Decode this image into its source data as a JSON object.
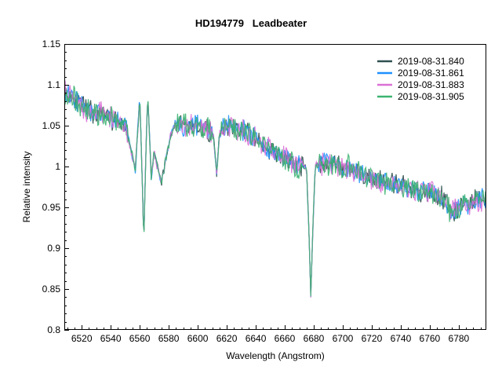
{
  "chart_data": {
    "type": "line",
    "title": "HD194779   Leadbeater",
    "xlabel": "Wavelength (Angstrom)",
    "ylabel": "Relative intensity",
    "xlim": [
      6508,
      6799
    ],
    "ylim": [
      0.8,
      1.15
    ],
    "x_ticks": [
      6520,
      6540,
      6560,
      6580,
      6600,
      6620,
      6640,
      6660,
      6680,
      6700,
      6720,
      6740,
      6760,
      6780
    ],
    "y_ticks": [
      0.8,
      0.85,
      0.9,
      0.95,
      1.0,
      1.05,
      1.1,
      1.15
    ],
    "y_tick_labels": [
      "0.8",
      "0.85",
      "0.9",
      "0.95",
      "1",
      "1.05",
      "1.1",
      "1.15"
    ],
    "grid": false,
    "legend_position": "upper right (inside)",
    "continuum_profile": {
      "x": [
        6508,
        6515,
        6522,
        6530,
        6540,
        6550,
        6554,
        6557,
        6560,
        6561.5,
        6562.8,
        6564,
        6565.5,
        6568,
        6570,
        6572,
        6575,
        6578,
        6581,
        6585,
        6590,
        6600,
        6608,
        6611,
        6613,
        6615,
        6620,
        6630,
        6640,
        6650,
        6660,
        6670,
        6675,
        6676.5,
        6678,
        6679.5,
        6681,
        6690,
        6700,
        6710,
        6720,
        6730,
        6740,
        6750,
        6760,
        6765,
        6770,
        6775,
        6780,
        6790,
        6799
      ],
      "y": [
        1.09,
        1.085,
        1.07,
        1.065,
        1.06,
        1.05,
        1.02,
        0.995,
        1.085,
        1.0,
        0.905,
        1.0,
        1.09,
        0.985,
        1.02,
        1.0,
        0.98,
        1.01,
        1.035,
        1.055,
        1.05,
        1.05,
        1.045,
        1.035,
        0.99,
        1.04,
        1.05,
        1.045,
        1.035,
        1.02,
        1.01,
        1.0,
        1.0,
        0.93,
        0.84,
        0.93,
        1.0,
        1.005,
        1.0,
        0.995,
        0.985,
        0.98,
        0.975,
        0.97,
        0.97,
        0.965,
        0.96,
        0.945,
        0.95,
        0.96,
        0.96
      ]
    },
    "features": [
      {
        "label": "H-alpha absorption",
        "x": 6562.8,
        "y_min": 0.905
      },
      {
        "label": "He I absorption",
        "x": 6678,
        "y_min": 0.84
      },
      {
        "label": "narrow dip",
        "x": 6613,
        "y_min": 0.99
      }
    ],
    "series": [
      {
        "name": "2019-08-31.840",
        "color": "#2f4f4f",
        "noise_seed": 11,
        "noise_amp": 0.011
      },
      {
        "name": "2019-08-31.861",
        "color": "#1e90ff",
        "noise_seed": 23,
        "noise_amp": 0.011
      },
      {
        "name": "2019-08-31.883",
        "color": "#da70d6",
        "noise_seed": 37,
        "noise_amp": 0.012
      },
      {
        "name": "2019-08-31.905",
        "color": "#3cb371",
        "noise_seed": 53,
        "noise_amp": 0.013
      }
    ]
  },
  "legend": {
    "items": [
      {
        "label": "2019-08-31.840",
        "color": "#2f4f4f"
      },
      {
        "label": "2019-08-31.861",
        "color": "#1e90ff"
      },
      {
        "label": "2019-08-31.883",
        "color": "#da70d6"
      },
      {
        "label": "2019-08-31.905",
        "color": "#3cb371"
      }
    ]
  }
}
